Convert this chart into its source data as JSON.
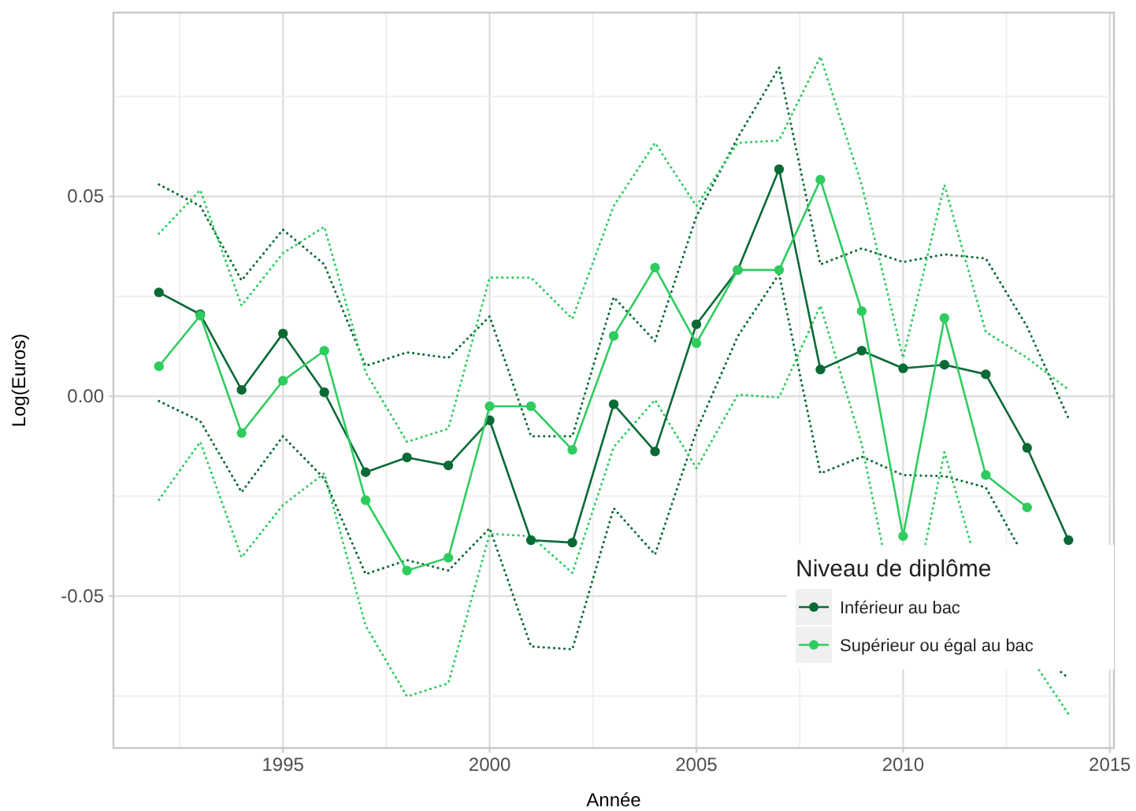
{
  "chart_data": {
    "type": "line",
    "xlabel": "Année",
    "ylabel": "Log(Euros)",
    "legend_title": "Niveau de diplôme",
    "x": [
      1992,
      1993,
      1994,
      1995,
      1996,
      1997,
      1998,
      1999,
      2000,
      2001,
      2002,
      2003,
      2004,
      2005,
      2006,
      2007,
      2008,
      2009,
      2010,
      2011,
      2012,
      2013,
      2014
    ],
    "series": [
      {
        "color": "#0a6a36",
        "line_style": "dotted",
        "marker": "none",
        "x": [
          1992,
          1993,
          1994,
          1995,
          1996,
          1997,
          1998,
          1999,
          2000,
          2001,
          2002,
          2003,
          2004,
          2005,
          2006,
          2007,
          2008,
          2009,
          2010,
          2011,
          2012,
          2012.76,
          2013.3,
          2013.82,
          2014
        ],
        "values": [
          -0.0012,
          -0.0062,
          -0.024,
          -0.01,
          -0.0206,
          -0.0445,
          -0.041,
          -0.0436,
          -0.033,
          -0.0626,
          -0.0633,
          -0.028,
          -0.0396,
          -0.0087,
          0.015,
          0.0306,
          -0.0193,
          -0.0151,
          -0.0197,
          -0.02,
          -0.0228,
          -0.037,
          null,
          -0.069,
          -0.0705
        ]
      },
      {
        "color": "#0a6a36",
        "line_style": "dotted",
        "marker": "none",
        "values": [
          0.053,
          0.0476,
          0.029,
          0.0417,
          0.033,
          0.0076,
          0.011,
          0.0096,
          0.02,
          -0.01,
          -0.01,
          0.0248,
          0.0138,
          0.045,
          0.0647,
          0.0822,
          0.033,
          0.037,
          0.0336,
          0.0355,
          0.0345,
          0.0174,
          -0.0055
        ]
      },
      {
        "color": "#2ecc5f",
        "line_style": "dotted",
        "marker": "none",
        "x": [
          1992,
          1993,
          1994,
          1995,
          1996,
          1997,
          1998,
          1999,
          2000,
          2001,
          2002,
          2003,
          2004,
          2005,
          2006,
          2007,
          2008,
          2009,
          2009.49,
          2010,
          2010.54,
          2011,
          2011.64,
          2012.5,
          2013.29,
          2014
        ],
        "values": [
          -0.0259,
          -0.0114,
          -0.0403,
          -0.0272,
          -0.0193,
          -0.0574,
          -0.0751,
          -0.0718,
          -0.0344,
          -0.035,
          -0.0442,
          -0.0127,
          -0.0009,
          -0.018,
          0.0004,
          -0.0003,
          0.0227,
          -0.012,
          -0.037,
          null,
          -0.037,
          -0.014,
          -0.037,
          null,
          -0.0685,
          -0.0795
        ]
      },
      {
        "color": "#2ecc5f",
        "line_style": "dotted",
        "marker": "none",
        "values": [
          0.0407,
          0.0516,
          0.0227,
          0.0358,
          0.0424,
          0.006,
          -0.0114,
          -0.0081,
          0.0297,
          0.0297,
          0.0194,
          0.0476,
          0.0634,
          0.0476,
          0.0634,
          0.064,
          0.085,
          0.0529,
          0.0096,
          0.0529,
          0.0161,
          0.0096,
          0.0017
        ]
      },
      {
        "name": "Inférieur au bac",
        "color": "#0a6a36",
        "values": [
          0.026,
          0.0205,
          0.0016,
          0.0157,
          0.001,
          -0.019,
          -0.0153,
          -0.0173,
          -0.006,
          -0.036,
          -0.0366,
          -0.002,
          -0.0138,
          0.018,
          0.0316,
          0.0568,
          0.0067,
          0.0114,
          0.007,
          0.0079,
          0.0055,
          -0.0129,
          -0.036
        ]
      },
      {
        "name": "Supérieur ou égal au bac",
        "color": "#2ecc5f",
        "values": [
          0.0075,
          0.0202,
          -0.0092,
          0.0039,
          0.0114,
          -0.026,
          -0.0436,
          -0.0404,
          -0.0025,
          -0.0025,
          -0.0134,
          0.0151,
          0.0322,
          0.0133,
          0.0316,
          0.0316,
          0.0542,
          0.0213,
          -0.035,
          0.0196,
          -0.0197,
          -0.0278,
          null
        ]
      }
    ],
    "xlim": [
      1990.9,
      2015.1
    ],
    "xticks": [
      1995,
      2000,
      2005,
      2010,
      2015
    ],
    "ylim": [
      -0.088,
      0.096
    ],
    "yticks": [
      -0.05,
      {
        "value": 0,
        "label": "0.00"
      },
      0.05
    ],
    "grid": true,
    "legend": "bottom right",
    "marker": "circle",
    "line_style": "solid"
  }
}
